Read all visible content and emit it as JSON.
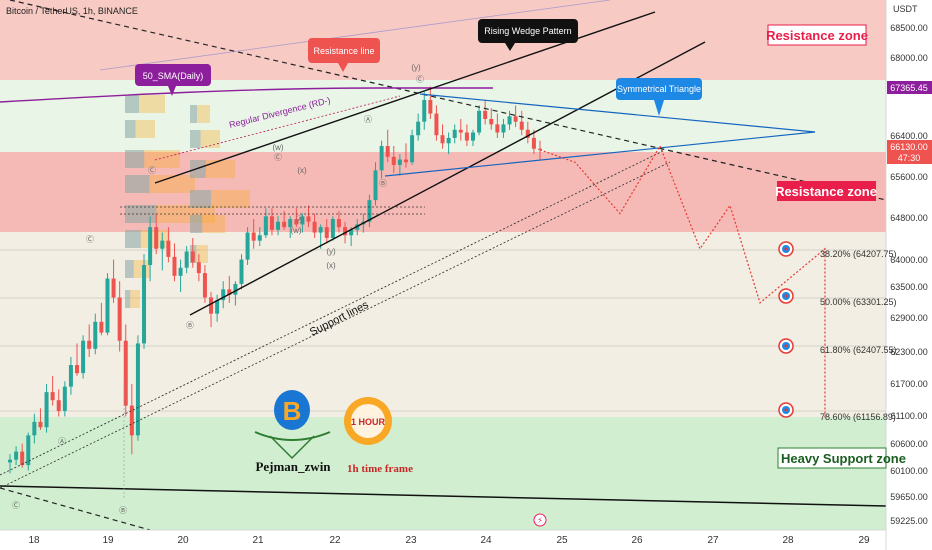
{
  "header": {
    "symbol_title": "Bitcoin / TetherUS, 1h, BINANCE",
    "currency": "USDT"
  },
  "colors": {
    "up": "#26a69a",
    "down": "#ef5350",
    "resistance_fill": "#f5b3ae",
    "support_fill": "#cfeecd",
    "triangle": "#1565c0",
    "sma": "#8e1f9c",
    "accent_red": "#e91e4a"
  },
  "zones": {
    "resistance_top": "Resistance zone",
    "resistance_mid": "Resistance zone",
    "support": "Heavy Support zone"
  },
  "callouts": {
    "sma": "50_SMA(Daily)",
    "resistance_line": "Resistance line",
    "rising_wedge": "Rising Wedge Pattern",
    "symmetrical_triangle": "Symmetrical Triangle"
  },
  "annotations": {
    "divergence": "Regular Divergence (RD-)",
    "support_lines": "Support lines"
  },
  "logo": {
    "author": "Pejman_zwin",
    "timeframe": "1h time frame",
    "hour_badge": "1 HOUR"
  },
  "price_tags": {
    "sma_value": "67365.45",
    "current_price": "66130.00",
    "countdown": "47:30"
  },
  "fib_levels": [
    {
      "label": "38.20% (64207.75)"
    },
    {
      "label": "50.00% (63301.25)"
    },
    {
      "label": "61.80% (62407.55)"
    },
    {
      "label": "78.60% (61156.89)"
    }
  ],
  "waves": [
    {
      "text": "(y)"
    },
    {
      "text": "Ⓒ"
    },
    {
      "text": "Ⓐ"
    },
    {
      "text": "Ⓑ"
    },
    {
      "text": "(w)"
    },
    {
      "text": "Ⓒ"
    },
    {
      "text": "(x)"
    },
    {
      "text": "Ⓐ"
    },
    {
      "text": "(w)"
    },
    {
      "text": "(y)"
    },
    {
      "text": "(x)"
    },
    {
      "text": "Ⓑ"
    },
    {
      "text": "Ⓒ"
    },
    {
      "text": "Ⓐ"
    },
    {
      "text": "Ⓑ"
    },
    {
      "text": "Ⓒ"
    },
    {
      "text": "Ⓒ"
    }
  ],
  "chart_data": {
    "type": "candlestick",
    "title": "Bitcoin / TetherUS, 1h, BINANCE",
    "x_ticks": [
      "18",
      "19",
      "20",
      "21",
      "22",
      "23",
      "24",
      "25",
      "26",
      "27",
      "28",
      "29"
    ],
    "y_ticks": [
      "68500.00",
      "68000.00",
      "67365.45",
      "66400.00",
      "66130.00",
      "65600.00",
      "64800.00",
      "64000.00",
      "63500.00",
      "62900.00",
      "62300.00",
      "61700.00",
      "61100.00",
      "60600.00",
      "60100.00",
      "59650.00",
      "59225.00"
    ],
    "ylim": [
      59100,
      68900
    ],
    "legend": "none",
    "series": [
      {
        "name": "BTCUSDT",
        "ohlc": [
          [
            60350,
            60500,
            60150,
            60400
          ],
          [
            60400,
            60650,
            60300,
            60550
          ],
          [
            60550,
            60700,
            60250,
            60300
          ],
          [
            60300,
            60900,
            60200,
            60850
          ],
          [
            60850,
            61250,
            60700,
            61100
          ],
          [
            61100,
            61350,
            60950,
            61000
          ],
          [
            61000,
            61800,
            60900,
            61650
          ],
          [
            61650,
            61950,
            61400,
            61500
          ],
          [
            61500,
            61700,
            61200,
            61300
          ],
          [
            61300,
            61850,
            61200,
            61750
          ],
          [
            61750,
            62300,
            61600,
            62150
          ],
          [
            62150,
            62550,
            61950,
            62000
          ],
          [
            62000,
            62700,
            61900,
            62600
          ],
          [
            62600,
            62900,
            62300,
            62450
          ],
          [
            62450,
            63100,
            62350,
            62950
          ],
          [
            62950,
            63300,
            62700,
            62750
          ],
          [
            62750,
            63850,
            62700,
            63750
          ],
          [
            63750,
            64100,
            63300,
            63400
          ],
          [
            63400,
            63700,
            62400,
            62600
          ],
          [
            62600,
            62900,
            61200,
            61400
          ],
          [
            61400,
            61800,
            60500,
            60850
          ],
          [
            60850,
            62700,
            60750,
            62550
          ],
          [
            62550,
            64200,
            62450,
            64000
          ],
          [
            64000,
            64900,
            63700,
            64700
          ],
          [
            64700,
            64950,
            64200,
            64300
          ],
          [
            64300,
            64600,
            63900,
            64450
          ],
          [
            64450,
            64700,
            64050,
            64150
          ],
          [
            64150,
            64400,
            63700,
            63800
          ],
          [
            63800,
            64100,
            63500,
            63950
          ],
          [
            63950,
            64350,
            63850,
            64250
          ],
          [
            64250,
            64500,
            63950,
            64050
          ],
          [
            64050,
            64200,
            63700,
            63850
          ],
          [
            63850,
            64000,
            63300,
            63400
          ],
          [
            63400,
            63500,
            62850,
            63100
          ],
          [
            63100,
            63450,
            62950,
            63350
          ],
          [
            63350,
            63700,
            63200,
            63550
          ],
          [
            63550,
            63800,
            63300,
            63450
          ],
          [
            63450,
            63700,
            63250,
            63650
          ],
          [
            63650,
            64200,
            63550,
            64100
          ],
          [
            64100,
            64700,
            64000,
            64600
          ],
          [
            64600,
            64850,
            64300,
            64450
          ],
          [
            64450,
            64700,
            64350,
            64550
          ],
          [
            64550,
            65050,
            64500,
            64900
          ],
          [
            64900,
            65050,
            64550,
            64650
          ],
          [
            64650,
            64900,
            64550,
            64800
          ],
          [
            64800,
            65000,
            64650,
            64700
          ],
          [
            64700,
            64900,
            64500,
            64850
          ],
          [
            64850,
            65050,
            64700,
            64750
          ],
          [
            64750,
            64950,
            64600,
            64900
          ],
          [
            64900,
            65100,
            64700,
            64800
          ],
          [
            64800,
            64950,
            64500,
            64600
          ],
          [
            64600,
            64750,
            64300,
            64700
          ],
          [
            64700,
            64850,
            64400,
            64500
          ],
          [
            64500,
            64900,
            64450,
            64850
          ],
          [
            64850,
            65000,
            64600,
            64700
          ],
          [
            64700,
            64800,
            64400,
            64550
          ],
          [
            64550,
            64700,
            64350,
            64650
          ],
          [
            64650,
            64850,
            64550,
            64750
          ],
          [
            64750,
            64950,
            64600,
            64800
          ],
          [
            64800,
            65300,
            64700,
            65200
          ],
          [
            65200,
            65900,
            65100,
            65750
          ],
          [
            65750,
            66300,
            65600,
            66200
          ],
          [
            66200,
            66500,
            65900,
            66000
          ],
          [
            66000,
            66200,
            65700,
            65850
          ],
          [
            65850,
            66050,
            65650,
            65950
          ],
          [
            65950,
            66250,
            65800,
            65900
          ],
          [
            65900,
            66500,
            65850,
            66400
          ],
          [
            66400,
            66800,
            66300,
            66650
          ],
          [
            66650,
            67200,
            66500,
            67050
          ],
          [
            67050,
            67300,
            66700,
            66800
          ],
          [
            66800,
            66950,
            66300,
            66400
          ],
          [
            66400,
            66600,
            66150,
            66250
          ],
          [
            66250,
            66450,
            66050,
            66350
          ],
          [
            66350,
            66600,
            66250,
            66500
          ],
          [
            66500,
            66700,
            66300,
            66450
          ],
          [
            66450,
            66600,
            66200,
            66300
          ],
          [
            66300,
            66500,
            66200,
            66450
          ],
          [
            66450,
            66950,
            66400,
            66850
          ],
          [
            66850,
            67050,
            66600,
            66700
          ],
          [
            66700,
            66900,
            66500,
            66600
          ],
          [
            66600,
            66800,
            66350,
            66450
          ],
          [
            66450,
            66700,
            66350,
            66600
          ],
          [
            66600,
            66850,
            66500,
            66750
          ],
          [
            66750,
            66950,
            66550,
            66650
          ],
          [
            66650,
            66850,
            66400,
            66500
          ],
          [
            66500,
            66650,
            66250,
            66350
          ],
          [
            66350,
            66500,
            66050,
            66150
          ],
          [
            66150,
            66300,
            65950,
            66130
          ]
        ]
      }
    ],
    "projection": [
      [
        66130,
        65900
      ],
      [
        65900,
        64950
      ],
      [
        64950,
        66200
      ],
      [
        66200,
        64300
      ],
      [
        64300,
        65100
      ],
      [
        65100,
        63300
      ],
      [
        63300,
        64300
      ],
      [
        64300,
        61150
      ]
    ]
  }
}
